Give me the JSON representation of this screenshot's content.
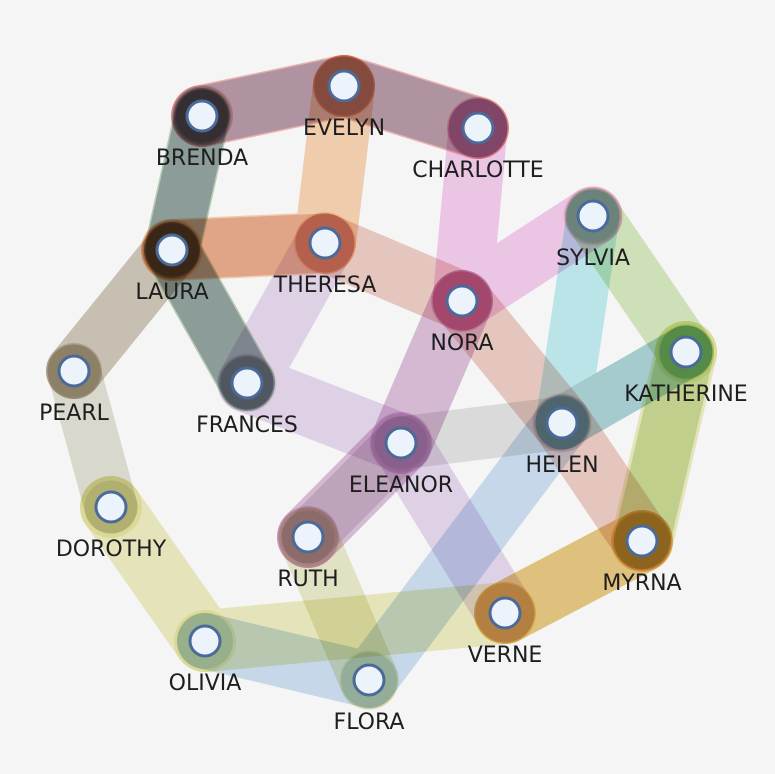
{
  "diagram": {
    "type": "hypergraph",
    "background": "#f5f5f5",
    "node_fill": "#edf3fb",
    "node_stroke": "#4a6a99",
    "nodes": [
      {
        "id": "EVELYN",
        "label": "EVELYN"
      },
      {
        "id": "BRENDA",
        "label": "BRENDA"
      },
      {
        "id": "CHARLOTTE",
        "label": "CHARLOTTE"
      },
      {
        "id": "LAURA",
        "label": "LAURA"
      },
      {
        "id": "THERESA",
        "label": "THERESA"
      },
      {
        "id": "SYLVIA",
        "label": "SYLVIA"
      },
      {
        "id": "NORA",
        "label": "NORA"
      },
      {
        "id": "PEARL",
        "label": "PEARL"
      },
      {
        "id": "FRANCES",
        "label": "FRANCES"
      },
      {
        "id": "KATHERINE",
        "label": "KATHERINE"
      },
      {
        "id": "HELEN",
        "label": "HELEN"
      },
      {
        "id": "ELEANOR",
        "label": "ELEANOR"
      },
      {
        "id": "DOROTHY",
        "label": "DOROTHY"
      },
      {
        "id": "RUTH",
        "label": "RUTH"
      },
      {
        "id": "MYRNA",
        "label": "MYRNA"
      },
      {
        "id": "VERNE",
        "label": "VERNE"
      },
      {
        "id": "OLIVIA",
        "label": "OLIVIA"
      },
      {
        "id": "FLORA",
        "label": "FLORA"
      }
    ],
    "hyperedges": [
      {
        "members": [
          "BRENDA",
          "EVELYN",
          "CHARLOTTE"
        ],
        "color": "#e0524a"
      },
      {
        "members": [
          "BRENDA",
          "EVELYN",
          "CHARLOTTE"
        ],
        "color": "#6b9ed6"
      },
      {
        "members": [
          "BRENDA",
          "LAURA",
          "FRANCES"
        ],
        "color": "#5f9c54"
      },
      {
        "members": [
          "BRENDA",
          "LAURA",
          "FRANCES"
        ],
        "color": "#7a6fb0"
      },
      {
        "members": [
          "EVELYN",
          "THERESA",
          "LAURA"
        ],
        "color": "#f09a4a"
      },
      {
        "members": [
          "LAURA",
          "THERESA",
          "NORA",
          "HELEN",
          "MYRNA"
        ],
        "color": "#d98a7a"
      },
      {
        "members": [
          "LAURA",
          "PEARL"
        ],
        "color": "#8f7a5a"
      },
      {
        "members": [
          "PEARL",
          "DOROTHY"
        ],
        "color": "#b8b89a"
      },
      {
        "members": [
          "DOROTHY",
          "OLIVIA",
          "VERNE",
          "MYRNA",
          "KATHERINE"
        ],
        "color": "#d6d36e"
      },
      {
        "members": [
          "CHARLOTTE",
          "NORA",
          "SYLVIA"
        ],
        "color": "#e887d6"
      },
      {
        "members": [
          "SYLVIA",
          "KATHERINE",
          "MYRNA"
        ],
        "color": "#9fce6a"
      },
      {
        "members": [
          "SYLVIA",
          "HELEN",
          "KATHERINE"
        ],
        "color": "#6fd6e0"
      },
      {
        "members": [
          "NORA",
          "ELEANOR",
          "RUTH"
        ],
        "color": "#b06aa8"
      },
      {
        "members": [
          "THERESA",
          "FRANCES",
          "ELEANOR",
          "VERNE"
        ],
        "color": "#c9a6d9"
      },
      {
        "members": [
          "OLIVIA",
          "FLORA",
          "HELEN"
        ],
        "color": "#88b4e0"
      },
      {
        "members": [
          "KATHERINE",
          "HELEN",
          "ELEANOR",
          "RUTH"
        ],
        "color": "#bdbdbd"
      },
      {
        "members": [
          "VERNE",
          "MYRNA"
        ],
        "color": "#f0a43a"
      },
      {
        "members": [
          "RUTH",
          "FLORA"
        ],
        "color": "#cfcf86"
      }
    ]
  }
}
